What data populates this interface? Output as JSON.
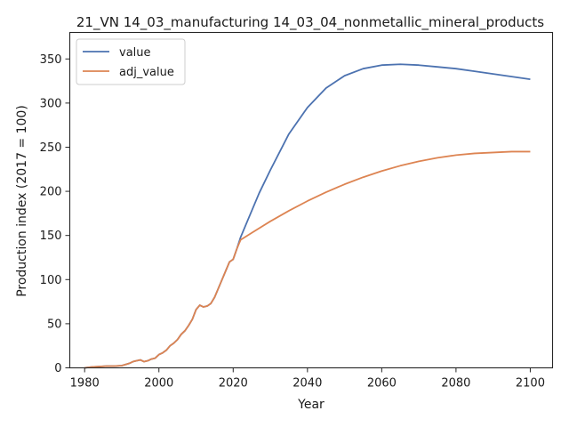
{
  "chart_data": {
    "type": "line",
    "title": "21_VN 14_03_manufacturing 14_03_04_nonmetallic_mineral_products",
    "xlabel": "Year",
    "ylabel": "Production index (2017 = 100)",
    "xlim": [
      1976,
      2106
    ],
    "ylim": [
      0,
      380
    ],
    "xticks": [
      1980,
      2000,
      2020,
      2040,
      2060,
      2080,
      2100
    ],
    "yticks": [
      0,
      50,
      100,
      150,
      200,
      250,
      300,
      350
    ],
    "grid": false,
    "legend_position": "top-left",
    "series": [
      {
        "name": "value",
        "color": "#4c72b0",
        "x": [
          1980,
          1982,
          1984,
          1986,
          1988,
          1990,
          1992,
          1993,
          1994,
          1995,
          1996,
          1997,
          1998,
          1999,
          2000,
          2001,
          2002,
          2003,
          2004,
          2005,
          2006,
          2007,
          2008,
          2009,
          2010,
          2011,
          2012,
          2013,
          2014,
          2015,
          2016,
          2017,
          2018,
          2019,
          2020,
          2021,
          2022,
          2024,
          2027,
          2030,
          2035,
          2040,
          2045,
          2050,
          2055,
          2060,
          2065,
          2070,
          2075,
          2080,
          2085,
          2090,
          2095,
          2100
        ],
        "y": [
          0,
          1,
          1.5,
          2,
          2,
          2.5,
          5,
          7,
          8,
          9,
          7,
          8,
          10,
          11,
          15,
          17,
          20,
          25,
          28,
          32,
          38,
          42,
          48,
          55,
          66,
          71,
          69,
          70,
          73,
          80,
          90,
          100,
          110,
          120,
          123,
          135,
          148,
          168,
          198,
          224,
          265,
          295,
          317,
          331,
          339,
          343,
          344,
          343,
          341,
          339,
          336,
          333,
          330,
          327
        ]
      },
      {
        "name": "adj_value",
        "color": "#dd8452",
        "x": [
          1980,
          1982,
          1984,
          1986,
          1988,
          1990,
          1992,
          1993,
          1994,
          1995,
          1996,
          1997,
          1998,
          1999,
          2000,
          2001,
          2002,
          2003,
          2004,
          2005,
          2006,
          2007,
          2008,
          2009,
          2010,
          2011,
          2012,
          2013,
          2014,
          2015,
          2016,
          2017,
          2018,
          2019,
          2020,
          2021,
          2022,
          2025,
          2030,
          2035,
          2040,
          2045,
          2050,
          2055,
          2060,
          2065,
          2070,
          2075,
          2080,
          2085,
          2090,
          2095,
          2100
        ],
        "y": [
          0,
          1,
          1.5,
          2,
          2,
          2.5,
          5,
          7,
          8,
          9,
          7,
          8,
          10,
          11,
          15,
          17,
          20,
          25,
          28,
          32,
          38,
          42,
          48,
          55,
          66,
          71,
          69,
          70,
          73,
          80,
          90,
          100,
          110,
          120,
          123,
          135,
          145,
          153,
          166,
          178,
          189,
          199,
          208,
          216,
          223,
          229,
          234,
          238,
          241,
          243,
          244,
          245,
          245
        ]
      }
    ]
  }
}
